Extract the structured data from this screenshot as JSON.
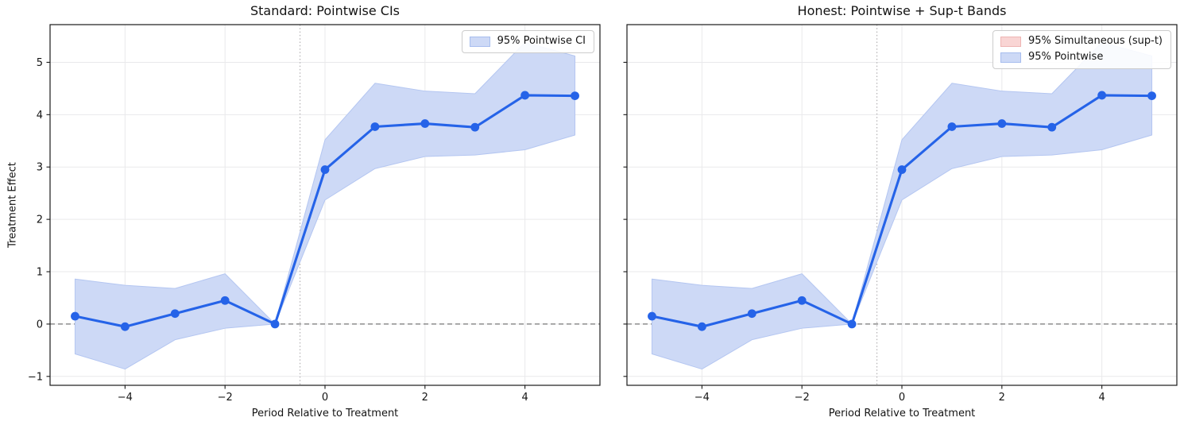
{
  "chart_data": [
    {
      "type": "line",
      "title": "Standard: Pointwise CIs",
      "xlabel": "Period Relative to Treatment",
      "ylabel": "Treatment Effect",
      "x": [
        -5,
        -4,
        -3,
        -2,
        -1,
        0,
        1,
        2,
        3,
        4,
        5
      ],
      "series": [
        {
          "name": "treatment-effect",
          "values": [
            0.15,
            -0.05,
            0.2,
            0.45,
            0.0,
            2.95,
            3.77,
            3.83,
            3.76,
            4.37,
            4.36
          ]
        }
      ],
      "bands": [
        {
          "name": "95% Pointwise CI",
          "lower": [
            -0.57,
            -0.86,
            -0.3,
            -0.08,
            0.0,
            2.37,
            2.97,
            3.2,
            3.23,
            3.33,
            3.61
          ],
          "upper": [
            0.86,
            0.74,
            0.68,
            0.96,
            0.0,
            3.52,
            4.6,
            4.45,
            4.4,
            5.38,
            5.12
          ]
        }
      ],
      "legend": [
        {
          "label": "95% Pointwise CI",
          "swatch_fill": "#cdd9f6",
          "swatch_edge": "#a7bdee"
        }
      ],
      "xticks": [
        -4,
        -2,
        0,
        2,
        4
      ],
      "yticks": [
        -1,
        0,
        1,
        2,
        3,
        4,
        5
      ],
      "show_ytick_labels": true,
      "xlim": [
        -5.5,
        5.5
      ],
      "ylim": [
        -1.17,
        5.72
      ],
      "zero_line_y": 0,
      "treatment_vline_x": -0.5,
      "grid": true,
      "legend_position": "upper right"
    },
    {
      "type": "line",
      "title": "Honest: Pointwise + Sup-t Bands",
      "xlabel": "Period Relative to Treatment",
      "ylabel": "",
      "x": [
        -5,
        -4,
        -3,
        -2,
        -1,
        0,
        1,
        2,
        3,
        4,
        5
      ],
      "series": [
        {
          "name": "treatment-effect",
          "values": [
            0.15,
            -0.05,
            0.2,
            0.45,
            0.0,
            2.95,
            3.77,
            3.83,
            3.76,
            4.37,
            4.36
          ]
        }
      ],
      "bands": [
        {
          "name": "95% Pointwise",
          "lower": [
            -0.57,
            -0.86,
            -0.3,
            -0.08,
            0.0,
            2.37,
            2.97,
            3.2,
            3.23,
            3.33,
            3.61
          ],
          "upper": [
            0.86,
            0.74,
            0.68,
            0.96,
            0.0,
            3.52,
            4.6,
            4.45,
            4.4,
            5.38,
            5.12
          ]
        }
      ],
      "legend": [
        {
          "label": "95% Simultaneous (sup-t)",
          "swatch_fill": "#f9d5d4",
          "swatch_edge": "#eeb5b3"
        },
        {
          "label": "95% Pointwise",
          "swatch_fill": "#cdd9f6",
          "swatch_edge": "#a7bdee"
        }
      ],
      "xticks": [
        -4,
        -2,
        0,
        2,
        4
      ],
      "yticks": [
        -1,
        0,
        1,
        2,
        3,
        4,
        5
      ],
      "show_ytick_labels": false,
      "xlim": [
        -5.5,
        5.5
      ],
      "ylim": [
        -1.17,
        5.72
      ],
      "zero_line_y": 0,
      "treatment_vline_x": -0.5,
      "grid": true,
      "legend_position": "upper right"
    }
  ],
  "style": {
    "line_color": "#2563e8",
    "marker_color": "#2563e8",
    "band_fill": "#cdd9f6",
    "band_edge": "#b4c6f1",
    "supt_fill": "#f9d5d4",
    "grid_color": "#e9e9eb",
    "zero_line_color": "#777777",
    "vline_color": "#b3b1b3",
    "spine_color": "#1a1a1a",
    "text_color": "#141414",
    "background": "#ffffff"
  }
}
